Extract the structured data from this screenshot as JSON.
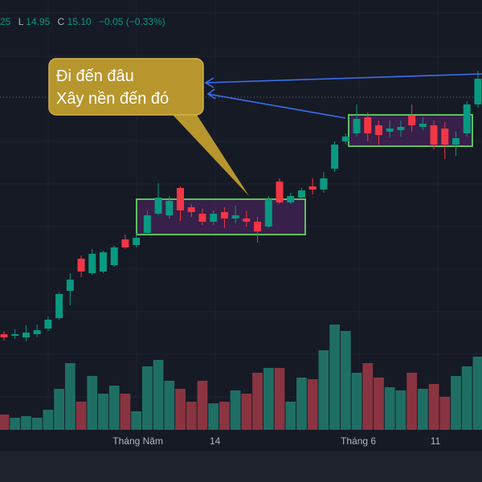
{
  "chart_data": {
    "type": "candlestick",
    "header": [
      "25",
      "L",
      "14.95",
      "C",
      "15.10",
      "−0.05 (−0.33%)"
    ],
    "annotation": [
      "Đi đến đâu",
      "Xây nền đến đó"
    ],
    "categories": [
      null,
      null,
      null,
      null,
      null,
      null,
      null,
      null,
      null,
      null,
      null,
      null,
      "Tháng Năm",
      null,
      null,
      null,
      null,
      null,
      null,
      "14",
      null,
      null,
      null,
      null,
      null,
      null,
      null,
      null,
      null,
      null,
      null,
      null,
      "Tháng 6",
      null,
      null,
      null,
      null,
      null,
      null,
      "11",
      null,
      null,
      null,
      null
    ],
    "open": [
      9.18,
      9.14,
      9.1,
      9.18,
      9.32,
      9.58,
      10.26,
      11.06,
      10.7,
      10.74,
      10.9,
      11.54,
      11.4,
      11.7,
      12.18,
      12.14,
      12.82,
      12.34,
      12.18,
      11.98,
      12.22,
      12.06,
      12.06,
      11.98,
      11.86,
      12.98,
      12.46,
      12.58,
      12.86,
      12.78,
      13.3,
      13.98,
      14.18,
      14.58,
      14.38,
      14.22,
      14.26,
      14.62,
      14.34,
      14.38,
      14.3,
      13.9,
      14.18,
      14.9
    ],
    "high": [
      9.26,
      9.3,
      9.4,
      9.42,
      9.62,
      10.22,
      10.7,
      11.14,
      11.3,
      11.26,
      11.38,
      11.66,
      11.7,
      12.26,
      12.94,
      12.62,
      12.86,
      12.42,
      12.3,
      12.26,
      12.34,
      12.38,
      12.26,
      12.1,
      12.62,
      13.06,
      12.7,
      12.82,
      13.06,
      13.22,
      13.98,
      14.18,
      14.9,
      14.7,
      14.5,
      14.5,
      14.5,
      14.9,
      14.58,
      14.5,
      14.46,
      14.22,
      14.98,
      15.74
    ],
    "low": [
      9.02,
      9.06,
      9.0,
      9.1,
      9.26,
      9.54,
      9.9,
      10.6,
      10.66,
      10.7,
      10.86,
      11.3,
      11.34,
      11.66,
      12.14,
      12.06,
      12.0,
      12.1,
      11.9,
      11.9,
      11.82,
      11.94,
      11.86,
      11.46,
      11.82,
      12.42,
      12.42,
      12.54,
      12.66,
      12.7,
      13.22,
      13.9,
      14.1,
      13.98,
      13.9,
      14.06,
      14.1,
      14.22,
      14.26,
      13.78,
      13.54,
      13.62,
      14.1,
      14.82
    ],
    "close": [
      9.1,
      9.18,
      9.22,
      9.28,
      9.54,
      10.18,
      10.54,
      10.74,
      11.18,
      11.22,
      11.34,
      11.34,
      11.58,
      12.14,
      12.58,
      12.5,
      12.26,
      12.22,
      11.98,
      12.18,
      12.06,
      12.14,
      11.98,
      11.74,
      12.54,
      12.46,
      12.62,
      12.76,
      12.78,
      13.06,
      13.9,
      14.1,
      14.54,
      14.18,
      14.14,
      14.3,
      14.34,
      14.38,
      14.42,
      13.9,
      13.9,
      14.06,
      14.9,
      15.54
    ],
    "volume": [
      1.9,
      1.5,
      1.7,
      1.5,
      2.5,
      5.1,
      8.3,
      3.5,
      6.7,
      4.5,
      5.5,
      4.5,
      2.3,
      7.9,
      8.7,
      6.1,
      5.1,
      3.5,
      6.1,
      3.3,
      3.5,
      4.9,
      4.5,
      7.1,
      7.7,
      7.7,
      3.5,
      6.5,
      6.3,
      9.9,
      13.1,
      12.3,
      7.1,
      8.3,
      6.5,
      5.3,
      4.9,
      7.1,
      5.1,
      5.7,
      4.1,
      6.7,
      7.9,
      9.1
    ],
    "ylim": [
      7.5,
      17.5
    ],
    "volume_lim": [
      0,
      50
    ],
    "up_color": "#089981",
    "down_color": "#f23645",
    "volume_up_color": "#1f6e64",
    "volume_down_color": "#8a3441"
  }
}
